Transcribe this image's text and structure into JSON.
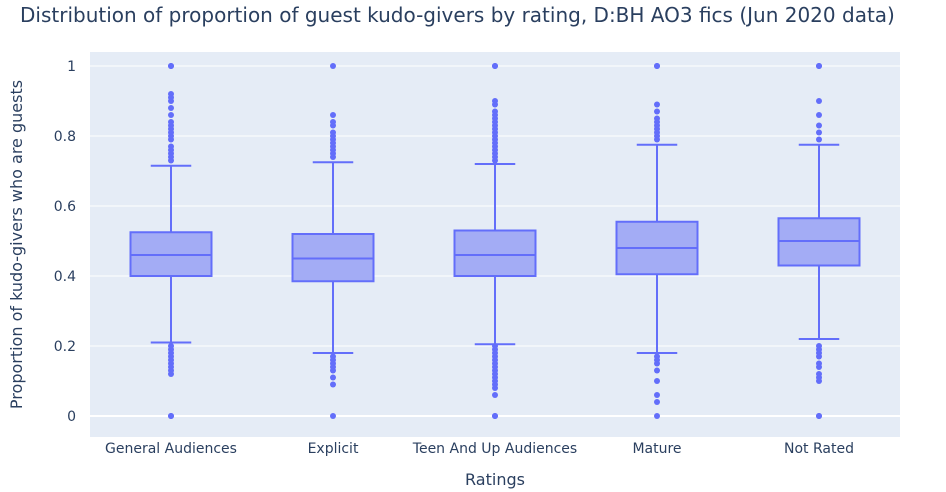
{
  "chart_data": {
    "type": "box",
    "title": "Distribution of proportion of guest kudo-givers by rating, D:BH AO3 fics (Jun 2020 data)",
    "xlabel": "Ratings",
    "ylabel": "Proportion of kudo-givers who are guests",
    "ylim": [
      -0.06,
      1.04
    ],
    "yticks": [
      0,
      0.2,
      0.4,
      0.6,
      0.8,
      1
    ],
    "ytick_labels": [
      "0",
      "0.2",
      "0.4",
      "0.6",
      "0.8",
      "1"
    ],
    "grid": true,
    "colors": {
      "plot_bg": "#e5ecf6",
      "box_fill": "#a3acf5",
      "box_line": "#636efa",
      "outlier": "#636efa",
      "grid": "#ffffff",
      "text": "#2a3f5f"
    },
    "categories": [
      "General Audiences",
      "Explicit",
      "Teen And Up Audiences",
      "Mature",
      "Not Rated"
    ],
    "boxes": [
      {
        "category": "General Audiences",
        "q1": 0.4,
        "median": 0.46,
        "q3": 0.525,
        "lower_fence": 0.21,
        "upper_fence": 0.715,
        "outliers": [
          0,
          0,
          0.12,
          0.13,
          0.14,
          0.15,
          0.16,
          0.17,
          0.18,
          0.19,
          0.2,
          0.73,
          0.74,
          0.75,
          0.76,
          0.77,
          0.79,
          0.8,
          0.81,
          0.82,
          0.83,
          0.84,
          0.86,
          0.88,
          0.9,
          0.91,
          0.92,
          1,
          1
        ]
      },
      {
        "category": "Explicit",
        "q1": 0.385,
        "median": 0.45,
        "q3": 0.52,
        "lower_fence": 0.18,
        "upper_fence": 0.725,
        "outliers": [
          0,
          0.09,
          0.11,
          0.13,
          0.14,
          0.15,
          0.16,
          0.17,
          0.74,
          0.75,
          0.76,
          0.77,
          0.78,
          0.79,
          0.8,
          0.81,
          0.83,
          0.84,
          0.86,
          1
        ]
      },
      {
        "category": "Teen And Up Audiences",
        "q1": 0.4,
        "median": 0.46,
        "q3": 0.53,
        "lower_fence": 0.205,
        "upper_fence": 0.72,
        "outliers": [
          0,
          0,
          0.06,
          0.08,
          0.09,
          0.1,
          0.11,
          0.12,
          0.13,
          0.14,
          0.15,
          0.16,
          0.17,
          0.18,
          0.19,
          0.2,
          0.73,
          0.74,
          0.75,
          0.76,
          0.77,
          0.78,
          0.79,
          0.8,
          0.81,
          0.82,
          0.83,
          0.84,
          0.85,
          0.86,
          0.87,
          0.89,
          0.9,
          1,
          1
        ]
      },
      {
        "category": "Mature",
        "q1": 0.405,
        "median": 0.48,
        "q3": 0.555,
        "lower_fence": 0.18,
        "upper_fence": 0.775,
        "outliers": [
          0,
          0.04,
          0.06,
          0.1,
          0.13,
          0.15,
          0.16,
          0.17,
          0.79,
          0.8,
          0.81,
          0.82,
          0.83,
          0.84,
          0.85,
          0.87,
          0.89,
          1,
          1
        ]
      },
      {
        "category": "Not Rated",
        "q1": 0.43,
        "median": 0.5,
        "q3": 0.565,
        "lower_fence": 0.22,
        "upper_fence": 0.775,
        "outliers": [
          0,
          0,
          0.1,
          0.11,
          0.12,
          0.14,
          0.15,
          0.17,
          0.18,
          0.19,
          0.2,
          0.79,
          0.81,
          0.83,
          0.86,
          0.9,
          1,
          1
        ]
      }
    ]
  }
}
